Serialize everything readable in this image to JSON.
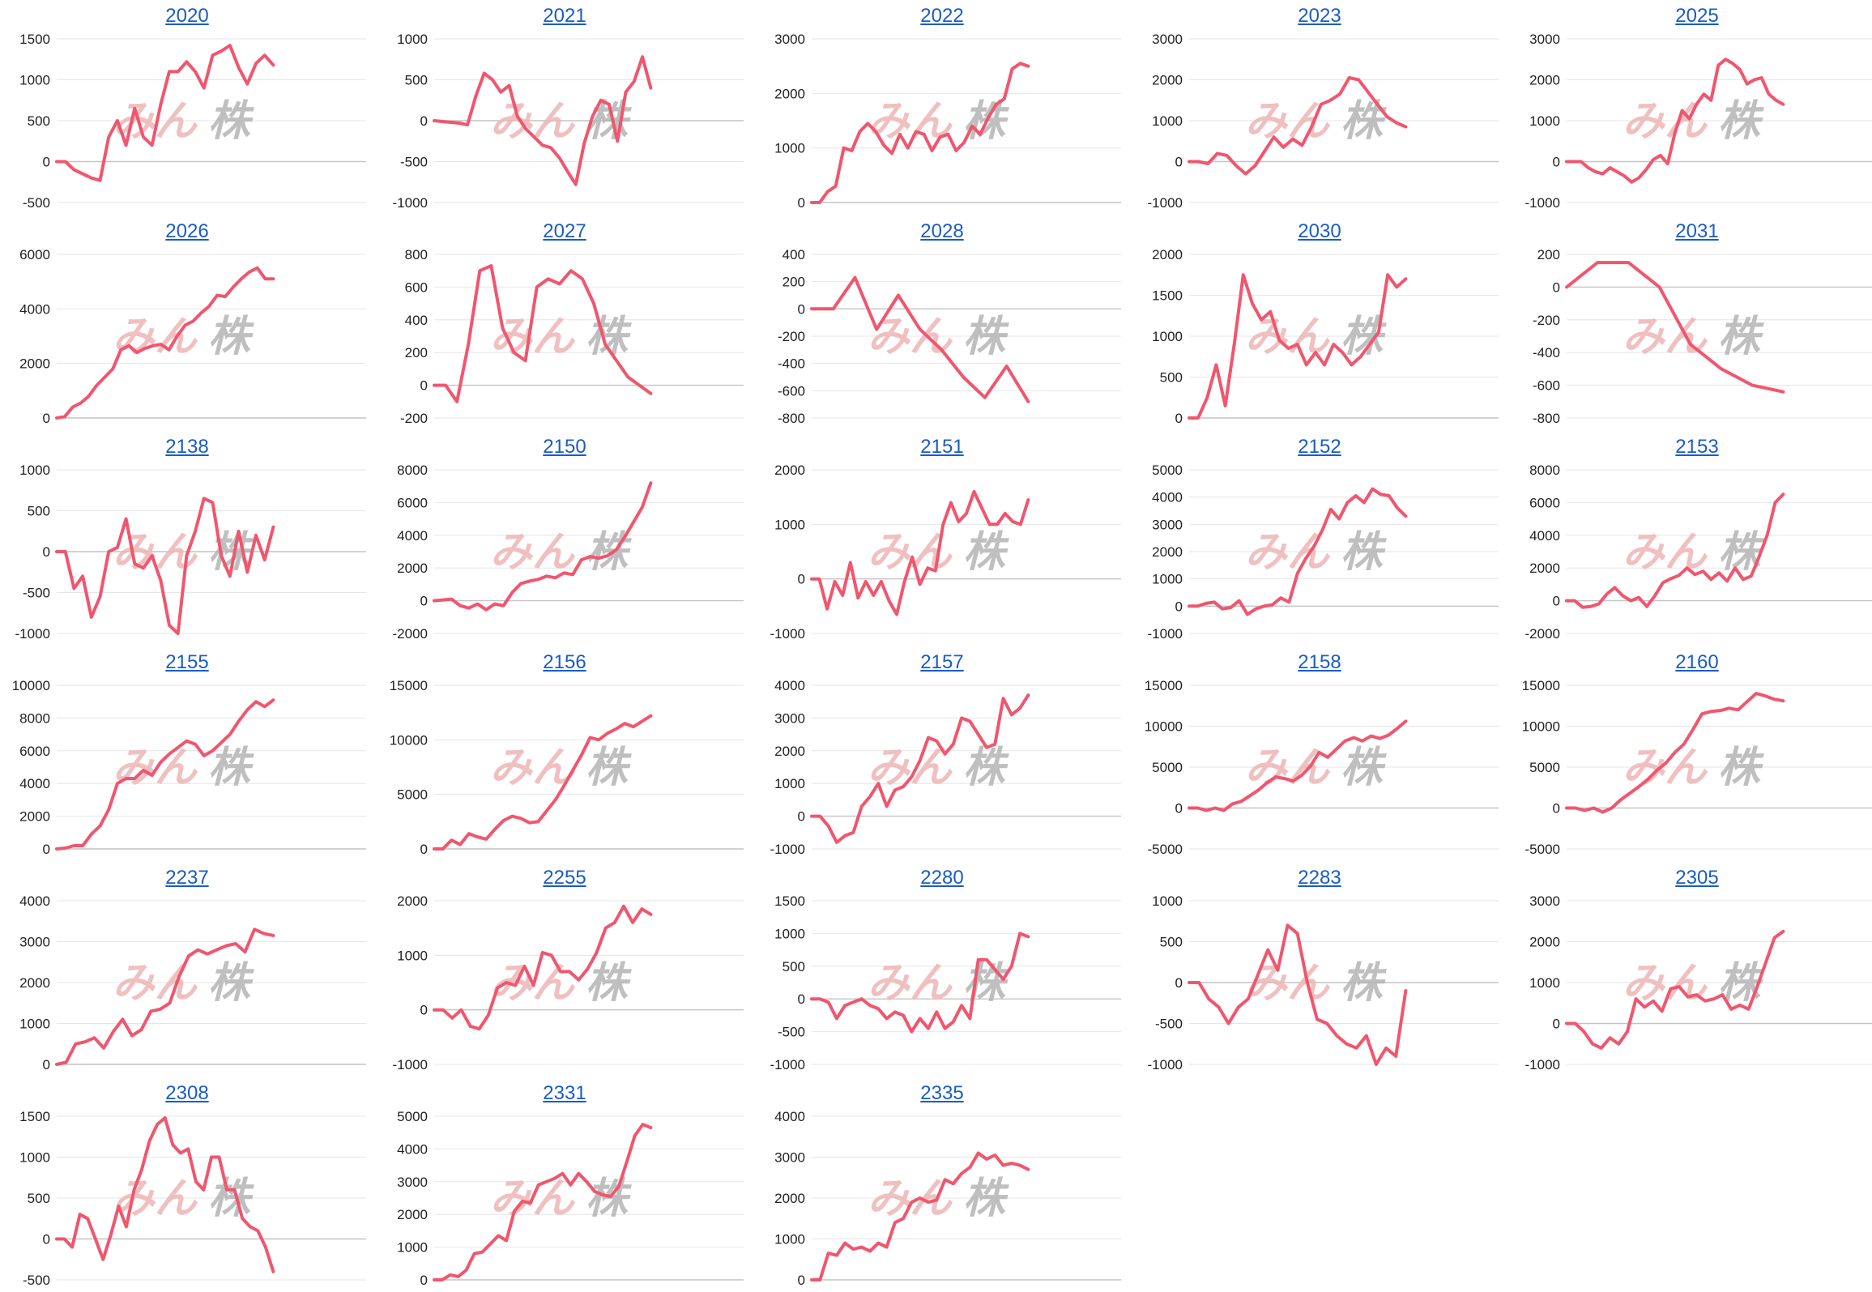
{
  "style": {
    "line_color": "#f0566e",
    "title_color": "#1a5cc8",
    "grid_color": "#e6e6e6",
    "axis_color": "#c4c4c4"
  },
  "watermark": {
    "part1": "みん",
    "part2": "株"
  },
  "chart_data": [
    {
      "type": "line",
      "title": "2020",
      "ylim": [
        -500,
        1500
      ],
      "yticks": [
        -500,
        0,
        500,
        1000,
        1500
      ],
      "values": [
        0,
        0,
        -100,
        -150,
        -200,
        -230,
        300,
        500,
        200,
        650,
        300,
        200,
        700,
        1100,
        1100,
        1220,
        1100,
        900,
        1300,
        1350,
        1420,
        1150,
        950,
        1200,
        1300,
        1180
      ]
    },
    {
      "type": "line",
      "title": "2021",
      "ylim": [
        -1000,
        1000
      ],
      "yticks": [
        -1000,
        -500,
        0,
        500,
        1000
      ],
      "values": [
        0,
        -10,
        -20,
        -30,
        -50,
        300,
        580,
        500,
        350,
        430,
        50,
        -100,
        -200,
        -300,
        -330,
        -450,
        -620,
        -780,
        -280,
        50,
        250,
        200,
        -250,
        350,
        480,
        780,
        400
      ]
    },
    {
      "type": "line",
      "title": "2022",
      "ylim": [
        0,
        3000
      ],
      "yticks": [
        0,
        1000,
        2000,
        3000
      ],
      "values": [
        0,
        0,
        200,
        300,
        1000,
        950,
        1300,
        1450,
        1300,
        1050,
        900,
        1250,
        1000,
        1300,
        1250,
        950,
        1200,
        1250,
        950,
        1100,
        1400,
        1250,
        1550,
        1800,
        1900,
        2450,
        2550,
        2500
      ]
    },
    {
      "type": "line",
      "title": "2023",
      "ylim": [
        -1000,
        3000
      ],
      "yticks": [
        -1000,
        0,
        1000,
        2000,
        3000
      ],
      "values": [
        0,
        0,
        -50,
        200,
        150,
        -100,
        -300,
        -100,
        250,
        600,
        350,
        550,
        400,
        850,
        1400,
        1500,
        1650,
        2050,
        2000,
        1700,
        1400,
        1100,
        950,
        850
      ]
    },
    {
      "type": "line",
      "title": "2025",
      "ylim": [
        -1000,
        3000
      ],
      "yticks": [
        -1000,
        0,
        1000,
        2000,
        3000
      ],
      "values": [
        0,
        0,
        0,
        -150,
        -250,
        -300,
        -150,
        -250,
        -350,
        -500,
        -400,
        -200,
        50,
        150,
        -50,
        700,
        1250,
        1050,
        1400,
        1650,
        1500,
        2350,
        2500,
        2400,
        2250,
        1900,
        2000,
        2050,
        1650,
        1500,
        1400
      ]
    },
    {
      "type": "line",
      "title": "2026",
      "ylim": [
        0,
        6000
      ],
      "yticks": [
        0,
        2000,
        4000,
        6000
      ],
      "values": [
        0,
        50,
        400,
        550,
        800,
        1200,
        1500,
        1800,
        2500,
        2650,
        2400,
        2550,
        2650,
        2700,
        2500,
        3000,
        3400,
        3550,
        3850,
        4100,
        4500,
        4450,
        4800,
        5100,
        5350,
        5500,
        5100,
        5100
      ]
    },
    {
      "type": "line",
      "title": "2027",
      "ylim": [
        -200,
        800
      ],
      "yticks": [
        -200,
        0,
        200,
        400,
        600,
        800
      ],
      "values": [
        0,
        0,
        -100,
        250,
        700,
        730,
        350,
        200,
        150,
        600,
        650,
        620,
        700,
        650,
        500,
        250,
        150,
        50,
        0,
        -50
      ]
    },
    {
      "type": "line",
      "title": "2028",
      "ylim": [
        -800,
        400
      ],
      "yticks": [
        -800,
        -600,
        -400,
        -200,
        0,
        200,
        400
      ],
      "values": [
        0,
        0,
        230,
        -150,
        100,
        -150,
        -300,
        -500,
        -650,
        -420,
        -680
      ]
    },
    {
      "type": "line",
      "title": "2030",
      "ylim": [
        0,
        2000
      ],
      "yticks": [
        0,
        500,
        1000,
        1500,
        2000
      ],
      "values": [
        0,
        0,
        250,
        650,
        150,
        900,
        1750,
        1400,
        1200,
        1300,
        950,
        850,
        900,
        650,
        800,
        650,
        900,
        800,
        650,
        750,
        900,
        1050,
        1750,
        1600,
        1700
      ]
    },
    {
      "type": "line",
      "title": "2031",
      "ylim": [
        -800,
        200
      ],
      "yticks": [
        -800,
        -600,
        -400,
        -200,
        0,
        200
      ],
      "values": [
        0,
        150,
        150,
        0,
        -350,
        -500,
        -600,
        -640
      ]
    },
    {
      "type": "line",
      "title": "2138",
      "ylim": [
        -1000,
        1000
      ],
      "yticks": [
        -1000,
        -500,
        0,
        500,
        1000
      ],
      "values": [
        0,
        0,
        -450,
        -300,
        -800,
        -550,
        0,
        50,
        400,
        -150,
        -200,
        -50,
        -350,
        -900,
        -1000,
        -50,
        250,
        650,
        600,
        -50,
        -300,
        250,
        -250,
        200,
        -100,
        300
      ]
    },
    {
      "type": "line",
      "title": "2150",
      "ylim": [
        -2000,
        8000
      ],
      "yticks": [
        -2000,
        0,
        2000,
        4000,
        6000,
        8000
      ],
      "values": [
        0,
        50,
        100,
        -300,
        -450,
        -200,
        -550,
        -200,
        -300,
        500,
        1050,
        1200,
        1300,
        1500,
        1400,
        1700,
        1600,
        2500,
        2700,
        2600,
        2750,
        3100,
        3900,
        4800,
        5700,
        7200
      ]
    },
    {
      "type": "line",
      "title": "2151",
      "ylim": [
        -1000,
        2000
      ],
      "yticks": [
        -1000,
        0,
        1000,
        2000
      ],
      "values": [
        0,
        0,
        -550,
        -50,
        -300,
        300,
        -350,
        -50,
        -300,
        -50,
        -400,
        -650,
        -50,
        400,
        -100,
        200,
        150,
        1000,
        1400,
        1050,
        1200,
        1600,
        1300,
        1000,
        1000,
        1200,
        1050,
        1000,
        1450
      ]
    },
    {
      "type": "line",
      "title": "2152",
      "ylim": [
        -1000,
        5000
      ],
      "yticks": [
        -1000,
        0,
        1000,
        2000,
        3000,
        4000,
        5000
      ],
      "values": [
        0,
        0,
        100,
        150,
        -100,
        -50,
        200,
        -300,
        -100,
        0,
        50,
        300,
        150,
        1200,
        1750,
        2200,
        2800,
        3550,
        3200,
        3800,
        4050,
        3800,
        4300,
        4100,
        4050,
        3600,
        3300
      ]
    },
    {
      "type": "line",
      "title": "2153",
      "ylim": [
        -2000,
        8000
      ],
      "yticks": [
        -2000,
        0,
        2000,
        4000,
        6000,
        8000
      ],
      "values": [
        0,
        0,
        -400,
        -350,
        -200,
        400,
        800,
        300,
        0,
        200,
        -350,
        300,
        1100,
        1350,
        1550,
        2000,
        1600,
        1800,
        1300,
        1700,
        1200,
        2000,
        1300,
        1500,
        2700,
        4000,
        6000,
        6500
      ]
    },
    {
      "type": "line",
      "title": "2155",
      "ylim": [
        0,
        10000
      ],
      "yticks": [
        0,
        2000,
        4000,
        6000,
        8000,
        10000
      ],
      "values": [
        0,
        50,
        200,
        200,
        900,
        1400,
        2400,
        4000,
        4300,
        4300,
        4800,
        4500,
        5300,
        5800,
        6200,
        6600,
        6400,
        5700,
        6000,
        6500,
        7000,
        7800,
        8500,
        9000,
        8700,
        9100
      ]
    },
    {
      "type": "line",
      "title": "2156",
      "ylim": [
        0,
        15000
      ],
      "yticks": [
        0,
        5000,
        10000,
        15000
      ],
      "values": [
        0,
        0,
        800,
        400,
        1400,
        1100,
        900,
        1800,
        2600,
        3000,
        2800,
        2400,
        2500,
        3500,
        4500,
        5800,
        7200,
        8600,
        10200,
        10000,
        10600,
        11000,
        11500,
        11200,
        11700,
        12200
      ]
    },
    {
      "type": "line",
      "title": "2157",
      "ylim": [
        -1000,
        4000
      ],
      "yticks": [
        -1000,
        0,
        1000,
        2000,
        3000,
        4000
      ],
      "values": [
        0,
        0,
        -300,
        -800,
        -600,
        -500,
        300,
        600,
        1000,
        300,
        800,
        900,
        1200,
        1700,
        2400,
        2300,
        1900,
        2200,
        3000,
        2900,
        2500,
        2100,
        2200,
        3600,
        3100,
        3300,
        3700
      ]
    },
    {
      "type": "line",
      "title": "2158",
      "ylim": [
        -5000,
        15000
      ],
      "yticks": [
        -5000,
        0,
        5000,
        10000,
        15000
      ],
      "values": [
        0,
        0,
        -300,
        0,
        -300,
        500,
        800,
        1500,
        2200,
        3100,
        3800,
        3600,
        3300,
        4000,
        5100,
        6800,
        6200,
        7200,
        8200,
        8600,
        8200,
        8800,
        8500,
        8900,
        9700,
        10600
      ]
    },
    {
      "type": "line",
      "title": "2160",
      "ylim": [
        -5000,
        15000
      ],
      "yticks": [
        -5000,
        0,
        5000,
        10000,
        15000
      ],
      "values": [
        0,
        0,
        -300,
        0,
        -500,
        0,
        1000,
        1800,
        2600,
        3500,
        4600,
        5500,
        6800,
        7800,
        9600,
        11500,
        11800,
        11900,
        12200,
        12000,
        13000,
        14000,
        13700,
        13300,
        13100
      ]
    },
    {
      "type": "line",
      "title": "2237",
      "ylim": [
        0,
        4000
      ],
      "yticks": [
        0,
        1000,
        2000,
        3000,
        4000
      ],
      "values": [
        0,
        50,
        500,
        550,
        650,
        400,
        800,
        1100,
        700,
        850,
        1300,
        1350,
        1500,
        2150,
        2650,
        2800,
        2700,
        2800,
        2900,
        2950,
        2750,
        3300,
        3200,
        3150
      ]
    },
    {
      "type": "line",
      "title": "2255",
      "ylim": [
        -1000,
        2000
      ],
      "yticks": [
        -1000,
        0,
        1000,
        2000
      ],
      "values": [
        0,
        0,
        -150,
        0,
        -300,
        -350,
        -100,
        400,
        500,
        450,
        800,
        450,
        1050,
        1000,
        700,
        700,
        550,
        750,
        1050,
        1500,
        1600,
        1900,
        1600,
        1850,
        1750
      ]
    },
    {
      "type": "line",
      "title": "2280",
      "ylim": [
        -1000,
        1500
      ],
      "yticks": [
        -1000,
        -500,
        0,
        500,
        1000,
        1500
      ],
      "values": [
        0,
        0,
        -50,
        -300,
        -100,
        -50,
        0,
        -100,
        -150,
        -300,
        -200,
        -250,
        -500,
        -300,
        -450,
        -200,
        -450,
        -350,
        -100,
        -300,
        600,
        600,
        450,
        300,
        500,
        1000,
        950
      ]
    },
    {
      "type": "line",
      "title": "2283",
      "ylim": [
        -1000,
        1000
      ],
      "yticks": [
        -1000,
        -500,
        0,
        500,
        1000
      ],
      "values": [
        0,
        0,
        -200,
        -300,
        -500,
        -300,
        -200,
        100,
        400,
        150,
        700,
        600,
        0,
        -450,
        -500,
        -650,
        -750,
        -800,
        -650,
        -1000,
        -800,
        -900,
        -100
      ]
    },
    {
      "type": "line",
      "title": "2305",
      "ylim": [
        -1000,
        3000
      ],
      "yticks": [
        -1000,
        0,
        1000,
        2000,
        3000
      ],
      "values": [
        0,
        0,
        -200,
        -500,
        -600,
        -350,
        -500,
        -200,
        600,
        400,
        550,
        300,
        850,
        900,
        650,
        700,
        550,
        600,
        700,
        350,
        450,
        350,
        900,
        1500,
        2100,
        2250
      ]
    },
    {
      "type": "line",
      "title": "2308",
      "ylim": [
        -500,
        1500
      ],
      "yticks": [
        -500,
        0,
        500,
        1000,
        1500
      ],
      "values": [
        0,
        0,
        -100,
        300,
        250,
        0,
        -250,
        50,
        400,
        150,
        600,
        850,
        1200,
        1400,
        1480,
        1150,
        1050,
        1100,
        700,
        600,
        1000,
        1000,
        600,
        600,
        250,
        150,
        100,
        -100,
        -400
      ]
    },
    {
      "type": "line",
      "title": "2331",
      "ylim": [
        0,
        5000
      ],
      "yticks": [
        0,
        1000,
        2000,
        3000,
        4000,
        5000
      ],
      "values": [
        0,
        0,
        150,
        100,
        300,
        800,
        850,
        1100,
        1350,
        1200,
        2100,
        2400,
        2350,
        2900,
        3000,
        3100,
        3250,
        2900,
        3250,
        3000,
        2700,
        2600,
        2550,
        2850,
        3600,
        4400,
        4750,
        4650
      ]
    },
    {
      "type": "line",
      "title": "2335",
      "ylim": [
        0,
        4000
      ],
      "yticks": [
        0,
        1000,
        2000,
        3000,
        4000
      ],
      "values": [
        0,
        0,
        650,
        600,
        900,
        750,
        800,
        700,
        900,
        800,
        1400,
        1500,
        1900,
        2000,
        1900,
        1950,
        2450,
        2350,
        2600,
        2750,
        3100,
        2950,
        3050,
        2800,
        2850,
        2800,
        2700
      ]
    }
  ]
}
